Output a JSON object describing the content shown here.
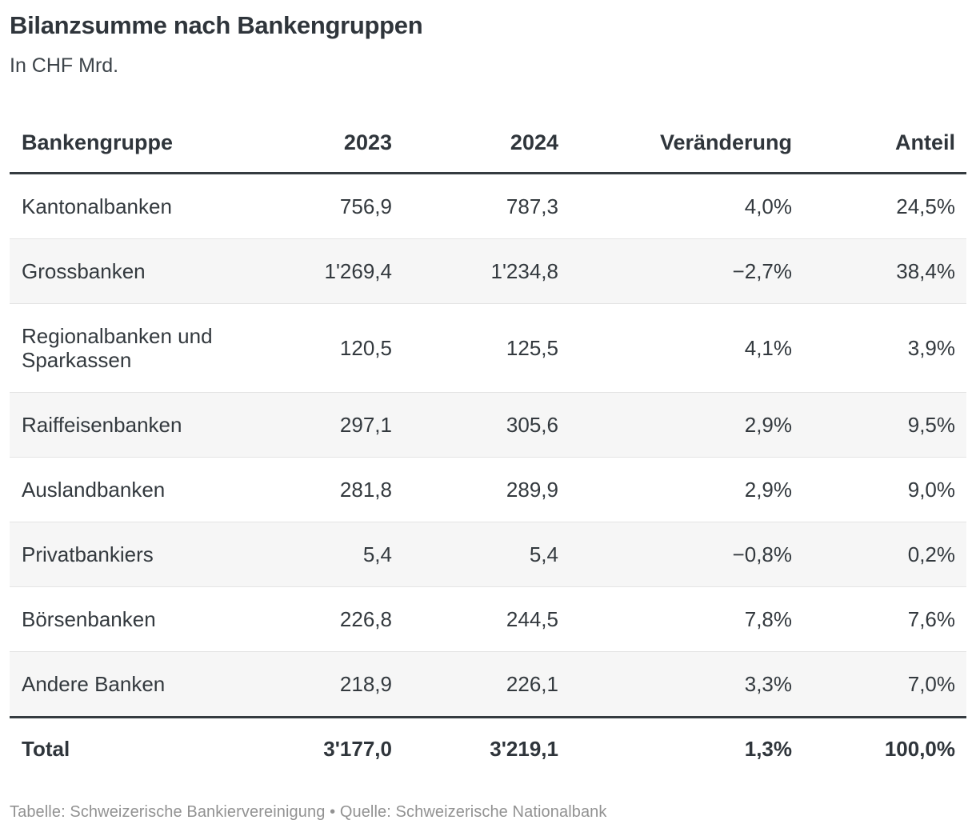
{
  "header": {
    "title": "Bilanzsumme nach Bankengruppen",
    "subtitle": "In CHF Mrd."
  },
  "chart_data": {
    "type": "table",
    "title": "Bilanzsumme nach Bankengruppen",
    "subtitle": "In CHF Mrd.",
    "unit": "CHF Mrd.",
    "columns": [
      "Bankengruppe",
      "2023",
      "2024",
      "Veränderung",
      "Anteil"
    ],
    "rows": [
      [
        "Kantonalbanken",
        "756,9",
        "787,3",
        "4,0%",
        "24,5%"
      ],
      [
        "Grossbanken",
        "1'269,4",
        "1'234,8",
        "−2,7%",
        "38,4%"
      ],
      [
        "Regionalbanken und Sparkassen",
        "120,5",
        "125,5",
        "4,1%",
        "3,9%"
      ],
      [
        "Raiffeisenbanken",
        "297,1",
        "305,6",
        "2,9%",
        "9,5%"
      ],
      [
        "Auslandbanken",
        "281,8",
        "289,9",
        "2,9%",
        "9,0%"
      ],
      [
        "Privatbankiers",
        "5,4",
        "5,4",
        "−0,8%",
        "0,2%"
      ],
      [
        "Börsenbanken",
        "226,8",
        "244,5",
        "7,8%",
        "7,6%"
      ],
      [
        "Andere Banken",
        "218,9",
        "226,1",
        "3,3%",
        "7,0%"
      ]
    ],
    "total": [
      "Total",
      "3'177,0",
      "3'219,1",
      "1,3%",
      "100,0%"
    ],
    "layout_hints": {
      "zebra_striping": true,
      "numeric_columns_right_aligned": true,
      "grid": "horizontal-only"
    }
  },
  "footer": {
    "text": "Tabelle: Schweizerische Bankiervereinigung • Quelle: Schweizerische Nationalbank"
  },
  "colors": {
    "text_dark": "#2f353b",
    "text_body": "#33393e",
    "text_footer": "#929292",
    "row_stripe": "#f6f6f6",
    "row_divider": "#e4e4e4",
    "rule_heavy": "#353b40",
    "background": "#ffffff"
  }
}
